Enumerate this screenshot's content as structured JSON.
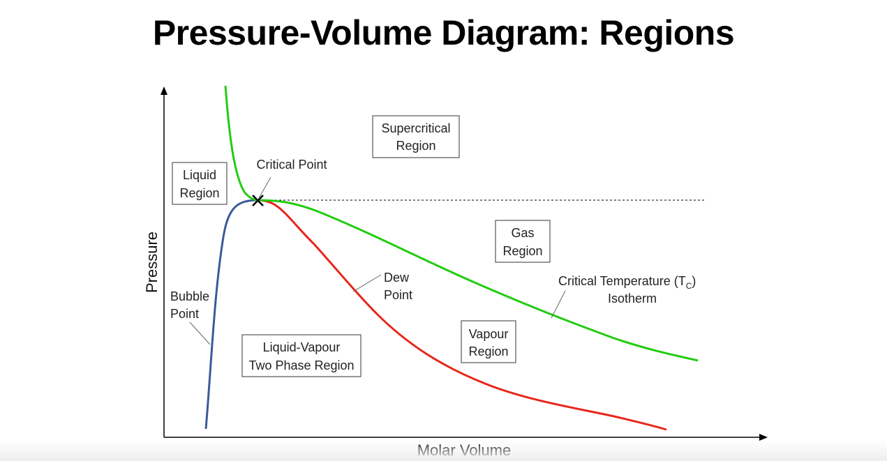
{
  "title": "Pressure-Volume Diagram: Regions",
  "axes": {
    "x_label": "Molar Volume",
    "y_label": "Pressure"
  },
  "regions": {
    "supercritical": [
      "Supercritical",
      "Region"
    ],
    "liquid": [
      "Liquid",
      "Region"
    ],
    "gas": [
      "Gas",
      "Region"
    ],
    "vapour": [
      "Vapour",
      "Region"
    ],
    "two_phase": [
      "Liquid-Vapour",
      "Two Phase Region"
    ]
  },
  "callouts": {
    "critical_point": "Critical Point",
    "bubble_point": [
      "Bubble",
      "Point"
    ],
    "dew_point": [
      "Dew",
      "Point"
    ],
    "isotherm_line1_main": "Critical Temperature (T",
    "isotherm_line1_sub": "C",
    "isotherm_line1_end": ")",
    "isotherm_line2": "Isotherm"
  },
  "colors": {
    "bubble_curve": "#3a5a99",
    "dew_curve": "#e8251a",
    "isotherm": "#22cc11",
    "axis": "#000000"
  }
}
